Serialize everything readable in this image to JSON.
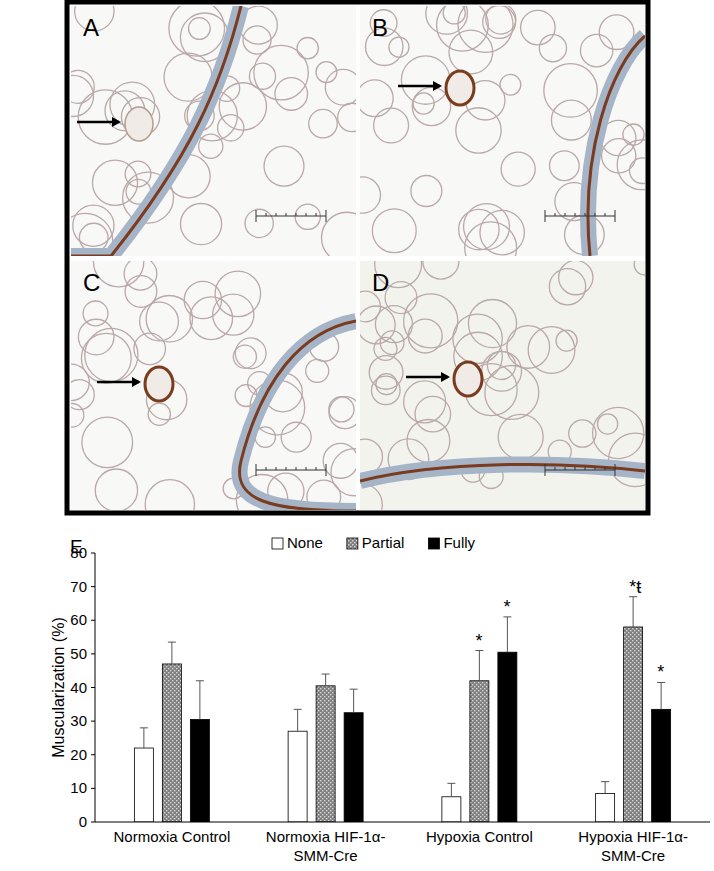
{
  "figure": {
    "panels": [
      {
        "label": "A"
      },
      {
        "label": "B"
      },
      {
        "label": "C"
      },
      {
        "label": "D"
      }
    ],
    "chart_panel_label": "E"
  },
  "chart_data": {
    "type": "bar",
    "ylabel": "Muscularization (%)",
    "categories": [
      "Normoxia Control",
      "Normoxia HIF-1α-SMM-Cre",
      "Hypoxia Control",
      "Hypoxia HIF-1α-SMM-Cre"
    ],
    "series": [
      {
        "name": "None",
        "color": "#ffffff",
        "values": [
          22,
          27,
          7.5,
          8.5
        ],
        "errors": [
          6,
          6.5,
          4,
          3.5
        ]
      },
      {
        "name": "Partial",
        "color": "#808080",
        "values": [
          47,
          40.5,
          42,
          58
        ],
        "errors": [
          6.5,
          3.5,
          9,
          9
        ]
      },
      {
        "name": "Fully",
        "color": "#000000",
        "values": [
          30.5,
          32.5,
          50.5,
          33.5
        ],
        "errors": [
          11.5,
          7,
          10.5,
          8
        ]
      }
    ],
    "annotations": [
      {
        "text": "*",
        "series": 1,
        "category": 2
      },
      {
        "text": "*",
        "series": 2,
        "category": 2
      },
      {
        "text": "*ŧ",
        "series": 1,
        "category": 3
      },
      {
        "text": "*",
        "series": 2,
        "category": 3
      }
    ],
    "ylim": [
      0,
      80
    ],
    "yticks": [
      0,
      10,
      20,
      30,
      40,
      50,
      60,
      70,
      80
    ],
    "grid": false,
    "legend": "top"
  }
}
